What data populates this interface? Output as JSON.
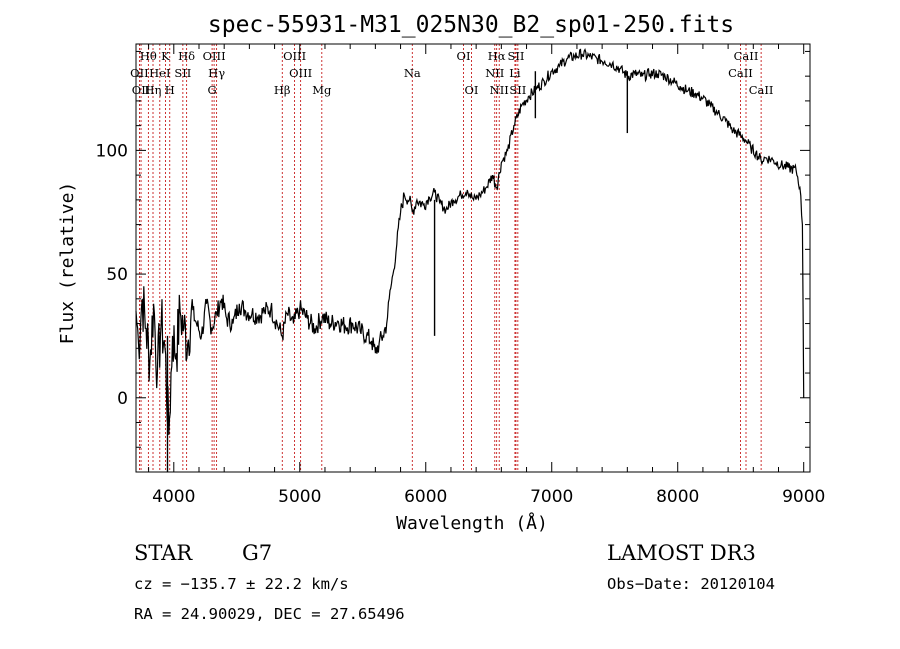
{
  "chart_data": {
    "type": "line",
    "title": "spec-55931-M31_025N30_B2_sp01-250.fits",
    "xlabel": "Wavelength (Å)",
    "ylabel": "Flux (relative)",
    "xlim": [
      3700,
      9050
    ],
    "ylim": [
      -30,
      143
    ],
    "xticks": [
      4000,
      5000,
      6000,
      7000,
      8000,
      9000
    ],
    "yticks": [
      0,
      50,
      100
    ],
    "series": [
      {
        "name": "spectrum",
        "x": [
          3700,
          3720,
          3750,
          3780,
          3810,
          3840,
          3870,
          3900,
          3930,
          3960,
          3990,
          4020,
          4050,
          4080,
          4110,
          4140,
          4180,
          4220,
          4260,
          4300,
          4340,
          4380,
          4420,
          4470,
          4520,
          4570,
          4620,
          4670,
          4720,
          4770,
          4820,
          4861,
          4900,
          4950,
          5000,
          5060,
          5120,
          5180,
          5240,
          5300,
          5360,
          5420,
          5480,
          5530,
          5570,
          5600,
          5630,
          5660,
          5690,
          5710,
          5740,
          5770,
          5800,
          5830,
          5870,
          5893,
          5930,
          5980,
          6030,
          6070,
          6110,
          6160,
          6220,
          6280,
          6330,
          6380,
          6430,
          6480,
          6530,
          6563,
          6600,
          6650,
          6700,
          6760,
          6820,
          6880,
          6940,
          7000,
          7060,
          7120,
          7180,
          7240,
          7300,
          7360,
          7420,
          7480,
          7540,
          7600,
          7660,
          7720,
          7780,
          7840,
          7900,
          7960,
          8020,
          8080,
          8140,
          8200,
          8260,
          8320,
          8380,
          8440,
          8500,
          8542,
          8580,
          8620,
          8662,
          8700,
          8760,
          8820,
          8880,
          8940,
          8970,
          8990,
          9000
        ],
        "y": [
          35,
          22,
          40,
          28,
          15,
          38,
          10,
          30,
          20,
          -15,
          25,
          18,
          35,
          28,
          22,
          36,
          30,
          25,
          38,
          28,
          34,
          40,
          32,
          30,
          38,
          35,
          34,
          33,
          35,
          36,
          30,
          25,
          34,
          30,
          36,
          32,
          28,
          33,
          30,
          31,
          29,
          30,
          27,
          25,
          23,
          18,
          22,
          25,
          30,
          40,
          50,
          62,
          75,
          82,
          80,
          75,
          80,
          78,
          81,
          83,
          79,
          76,
          80,
          82,
          84,
          80,
          82,
          85,
          90,
          85,
          95,
          100,
          110,
          118,
          122,
          125,
          128,
          132,
          134,
          137,
          138,
          139,
          138,
          137,
          136,
          135,
          133,
          130,
          131,
          130,
          131,
          131,
          130,
          128,
          126,
          124,
          123,
          121,
          118,
          115,
          112,
          108,
          106,
          104,
          101,
          99,
          96,
          97,
          96,
          94,
          93,
          92,
          85,
          70,
          0
        ]
      }
    ],
    "spikes": [
      {
        "x": 6070,
        "y": 25
      },
      {
        "x": 7600,
        "y": 107
      },
      {
        "x": 6870,
        "y": 113
      },
      {
        "x": 3950,
        "y": -30
      }
    ],
    "line_markers": [
      {
        "label": "OII",
        "x": 3727,
        "row": 2
      },
      {
        "label": "OII",
        "x": 3740,
        "row": 3
      },
      {
        "label": "Hθ",
        "x": 3798,
        "row": 1
      },
      {
        "label": "Hη",
        "x": 3835,
        "row": 3
      },
      {
        "label": "HeI",
        "x": 3889,
        "row": 2
      },
      {
        "label": "K",
        "x": 3934,
        "row": 1
      },
      {
        "label": "H",
        "x": 3968,
        "row": 3
      },
      {
        "label": "SII",
        "x": 4072,
        "row": 2
      },
      {
        "label": "Hδ",
        "x": 4102,
        "row": 1
      },
      {
        "label": "OIII",
        "x": 4320,
        "row": 1
      },
      {
        "label": "Hγ",
        "x": 4340,
        "row": 2
      },
      {
        "label": "G",
        "x": 4304,
        "row": 3
      },
      {
        "label": "Hβ",
        "x": 4861,
        "row": 3
      },
      {
        "label": "OIII",
        "x": 4959,
        "row": 1
      },
      {
        "label": "OIII",
        "x": 5007,
        "row": 2
      },
      {
        "label": "Mg",
        "x": 5175,
        "row": 3
      },
      {
        "label": "Na",
        "x": 5893,
        "row": 2
      },
      {
        "label": "OI",
        "x": 6300,
        "row": 1
      },
      {
        "label": "OI",
        "x": 6363,
        "row": 3
      },
      {
        "label": "NII",
        "x": 6548,
        "row": 2
      },
      {
        "label": "Hα",
        "x": 6563,
        "row": 1
      },
      {
        "label": "NII",
        "x": 6583,
        "row": 3
      },
      {
        "label": "SII",
        "x": 6716,
        "row": 1
      },
      {
        "label": "Li",
        "x": 6708,
        "row": 2
      },
      {
        "label": "SII",
        "x": 6731,
        "row": 3
      },
      {
        "label": "CaII",
        "x": 8498,
        "row": 2
      },
      {
        "label": "CaII",
        "x": 8542,
        "row": 1
      },
      {
        "label": "CaII",
        "x": 8662,
        "row": 3
      }
    ]
  },
  "footer": {
    "class_label": "STAR",
    "subclass": "G7",
    "survey": "LAMOST DR3",
    "cz": "cz = −135.7 ± 22.2 km/s",
    "obs_date": "Obs−Date: 20120104",
    "coords": "RA =  24.90029, DEC =  27.65496"
  },
  "colors": {
    "spectrum": "#000000",
    "marker": "#c00000",
    "axis": "#000000"
  }
}
